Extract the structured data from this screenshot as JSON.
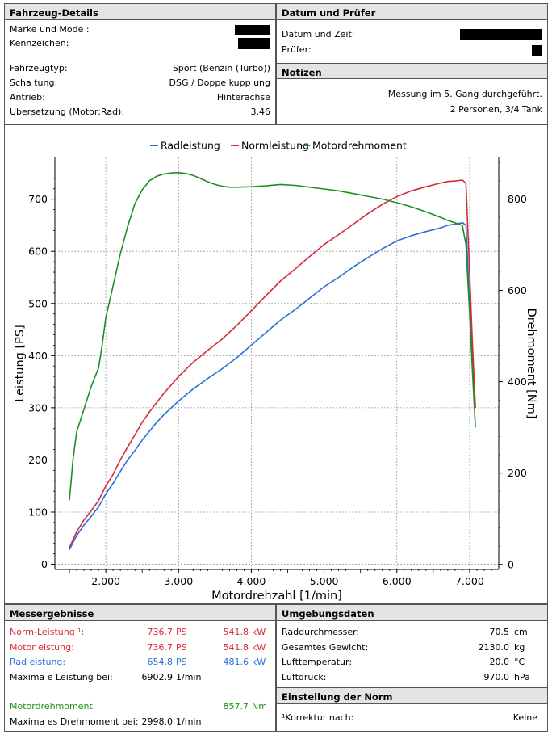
{
  "vehicle": {
    "title": "Fahrzeug-Details",
    "rows": [
      {
        "label": "Marke und Mode  :",
        "value": ""
      },
      {
        "label": "Kennzeichen:",
        "value": ""
      },
      {
        "label": "Fahrzeugtyp:",
        "value": "Sport (Benzin (Turbo))"
      },
      {
        "label": "Scha tung:",
        "value": "DSG / Doppe kupp ung"
      },
      {
        "label": "Antrieb:",
        "value": "Hinterachse"
      },
      {
        "label": "Übersetzung (Motor:Rad):",
        "value": "3.46"
      }
    ]
  },
  "date": {
    "title": "Datum und Prüfer",
    "rows": [
      {
        "label": "Datum und Zeit:"
      },
      {
        "label": "Prüfer:"
      }
    ]
  },
  "notes": {
    "title": "Notizen",
    "line1": "Messung im 5. Gang durchgeführt.",
    "line2": "2 Personen, 3/4 Tank"
  },
  "chart_data": {
    "type": "line",
    "xlabel": "Motordrehzahl [1/min]",
    "ylabel": "Leistung [PS]",
    "y2label": "Drehmoment [Nm]",
    "xlim": [
      1300,
      7400
    ],
    "ylim": [
      -10,
      780
    ],
    "y2lim": [
      -11,
      891
    ],
    "xticks": [
      2000,
      3000,
      4000,
      5000,
      6000,
      7000
    ],
    "xtick_labels": [
      "2.000",
      "3.000",
      "4.000",
      "5.000",
      "6.000",
      "7.000"
    ],
    "yticks": [
      0,
      100,
      200,
      300,
      400,
      500,
      600,
      700
    ],
    "y2ticks": [
      0,
      200,
      400,
      600,
      800
    ],
    "grid": true,
    "legend": "top",
    "series": [
      {
        "name": "Radleistung",
        "color": "#2a6fd6",
        "axis": "left",
        "x": [
          1500,
          1600,
          1700,
          1800,
          1900,
          2000,
          2100,
          2200,
          2300,
          2400,
          2500,
          2600,
          2700,
          2800,
          2900,
          3000,
          3200,
          3400,
          3600,
          3800,
          4000,
          4200,
          4400,
          4600,
          4800,
          5000,
          5200,
          5400,
          5600,
          5800,
          6000,
          6200,
          6400,
          6600,
          6700,
          6800,
          6903,
          6950,
          7000,
          7040,
          7080
        ],
        "y": [
          28,
          55,
          75,
          92,
          110,
          135,
          155,
          178,
          200,
          218,
          238,
          255,
          272,
          287,
          300,
          313,
          336,
          356,
          375,
          396,
          420,
          444,
          468,
          488,
          510,
          532,
          550,
          570,
          588,
          605,
          620,
          630,
          638,
          645,
          650,
          652,
          654.8,
          650,
          500,
          380,
          300
        ]
      },
      {
        "name": "Normleistung",
        "color": "#d42a3c",
        "axis": "left",
        "x": [
          1500,
          1600,
          1700,
          1800,
          1900,
          2000,
          2100,
          2200,
          2300,
          2400,
          2500,
          2600,
          2700,
          2800,
          2900,
          3000,
          3200,
          3400,
          3600,
          3800,
          4000,
          4200,
          4400,
          4600,
          4800,
          5000,
          5200,
          5400,
          5600,
          5800,
          6000,
          6200,
          6400,
          6600,
          6700,
          6800,
          6903,
          6950,
          7000,
          7040,
          7080
        ],
        "y": [
          32,
          62,
          85,
          103,
          122,
          150,
          172,
          200,
          225,
          248,
          272,
          292,
          310,
          328,
          344,
          360,
          387,
          410,
          432,
          458,
          486,
          515,
          543,
          566,
          590,
          613,
          632,
          652,
          672,
          690,
          705,
          716,
          724,
          731,
          734,
          735,
          736.7,
          730,
          560,
          420,
          300
        ]
      },
      {
        "name": "Motordrehmoment",
        "color": "#1e8f1e",
        "axis": "right",
        "x": [
          1500,
          1550,
          1600,
          1700,
          1800,
          1900,
          1950,
          2000,
          2100,
          2200,
          2300,
          2400,
          2500,
          2600,
          2700,
          2800,
          2900,
          2998,
          3100,
          3200,
          3300,
          3400,
          3500,
          3600,
          3700,
          3800,
          4000,
          4200,
          4400,
          4600,
          4800,
          5000,
          5200,
          5400,
          5600,
          5800,
          6000,
          6200,
          6400,
          6600,
          6700,
          6800,
          6900,
          6950,
          7000,
          7040,
          7080
        ],
        "y": [
          140,
          230,
          290,
          340,
          390,
          430,
          480,
          540,
          610,
          680,
          740,
          790,
          820,
          840,
          850,
          855,
          857,
          857.7,
          856,
          852,
          845,
          838,
          832,
          828,
          826,
          826,
          827,
          829,
          832,
          830,
          826,
          822,
          818,
          812,
          806,
          800,
          792,
          783,
          772,
          760,
          753,
          748,
          742,
          700,
          550,
          420,
          300
        ]
      }
    ]
  },
  "results": {
    "title": "Messergebnisse",
    "norm": {
      "label": "Norm-Leistung ¹:",
      "ps": "736.7",
      "ps_unit": "PS",
      "kw": "541.8",
      "kw_unit": "kW"
    },
    "motor": {
      "label": "Motor eistung:",
      "ps": "736.7",
      "ps_unit": "PS",
      "kw": "541.8",
      "kw_unit": "kW"
    },
    "rad": {
      "label": "Rad eistung:",
      "ps": "654.8",
      "ps_unit": "PS",
      "kw": "481.6",
      "kw_unit": "kW"
    },
    "maxpower": {
      "label": "Maxima e Leistung bei:",
      "value": "6902.9",
      "unit": "1/min"
    },
    "torque": {
      "label": "Motordrehmoment",
      "value": "857.7",
      "unit": "Nm"
    },
    "maxtorque": {
      "label": "Maxima es Drehmoment bei:",
      "value": "2998.0",
      "unit": "1/min"
    }
  },
  "env": {
    "title": "Umgebungsdaten",
    "rows": [
      {
        "label": "Raddurchmesser:",
        "value": "70.5",
        "unit": "cm"
      },
      {
        "label": "Gesamtes Gewicht:",
        "value": "2130.0",
        "unit": "kg"
      },
      {
        "label": "Lufttemperatur:",
        "value": "20.0",
        "unit": "°C"
      },
      {
        "label": "Luftdruck:",
        "value": "970.0",
        "unit": "hPa"
      }
    ]
  },
  "norm": {
    "title": "Einstellung der Norm",
    "label": "¹Korrektur nach:",
    "value": "Keine"
  }
}
